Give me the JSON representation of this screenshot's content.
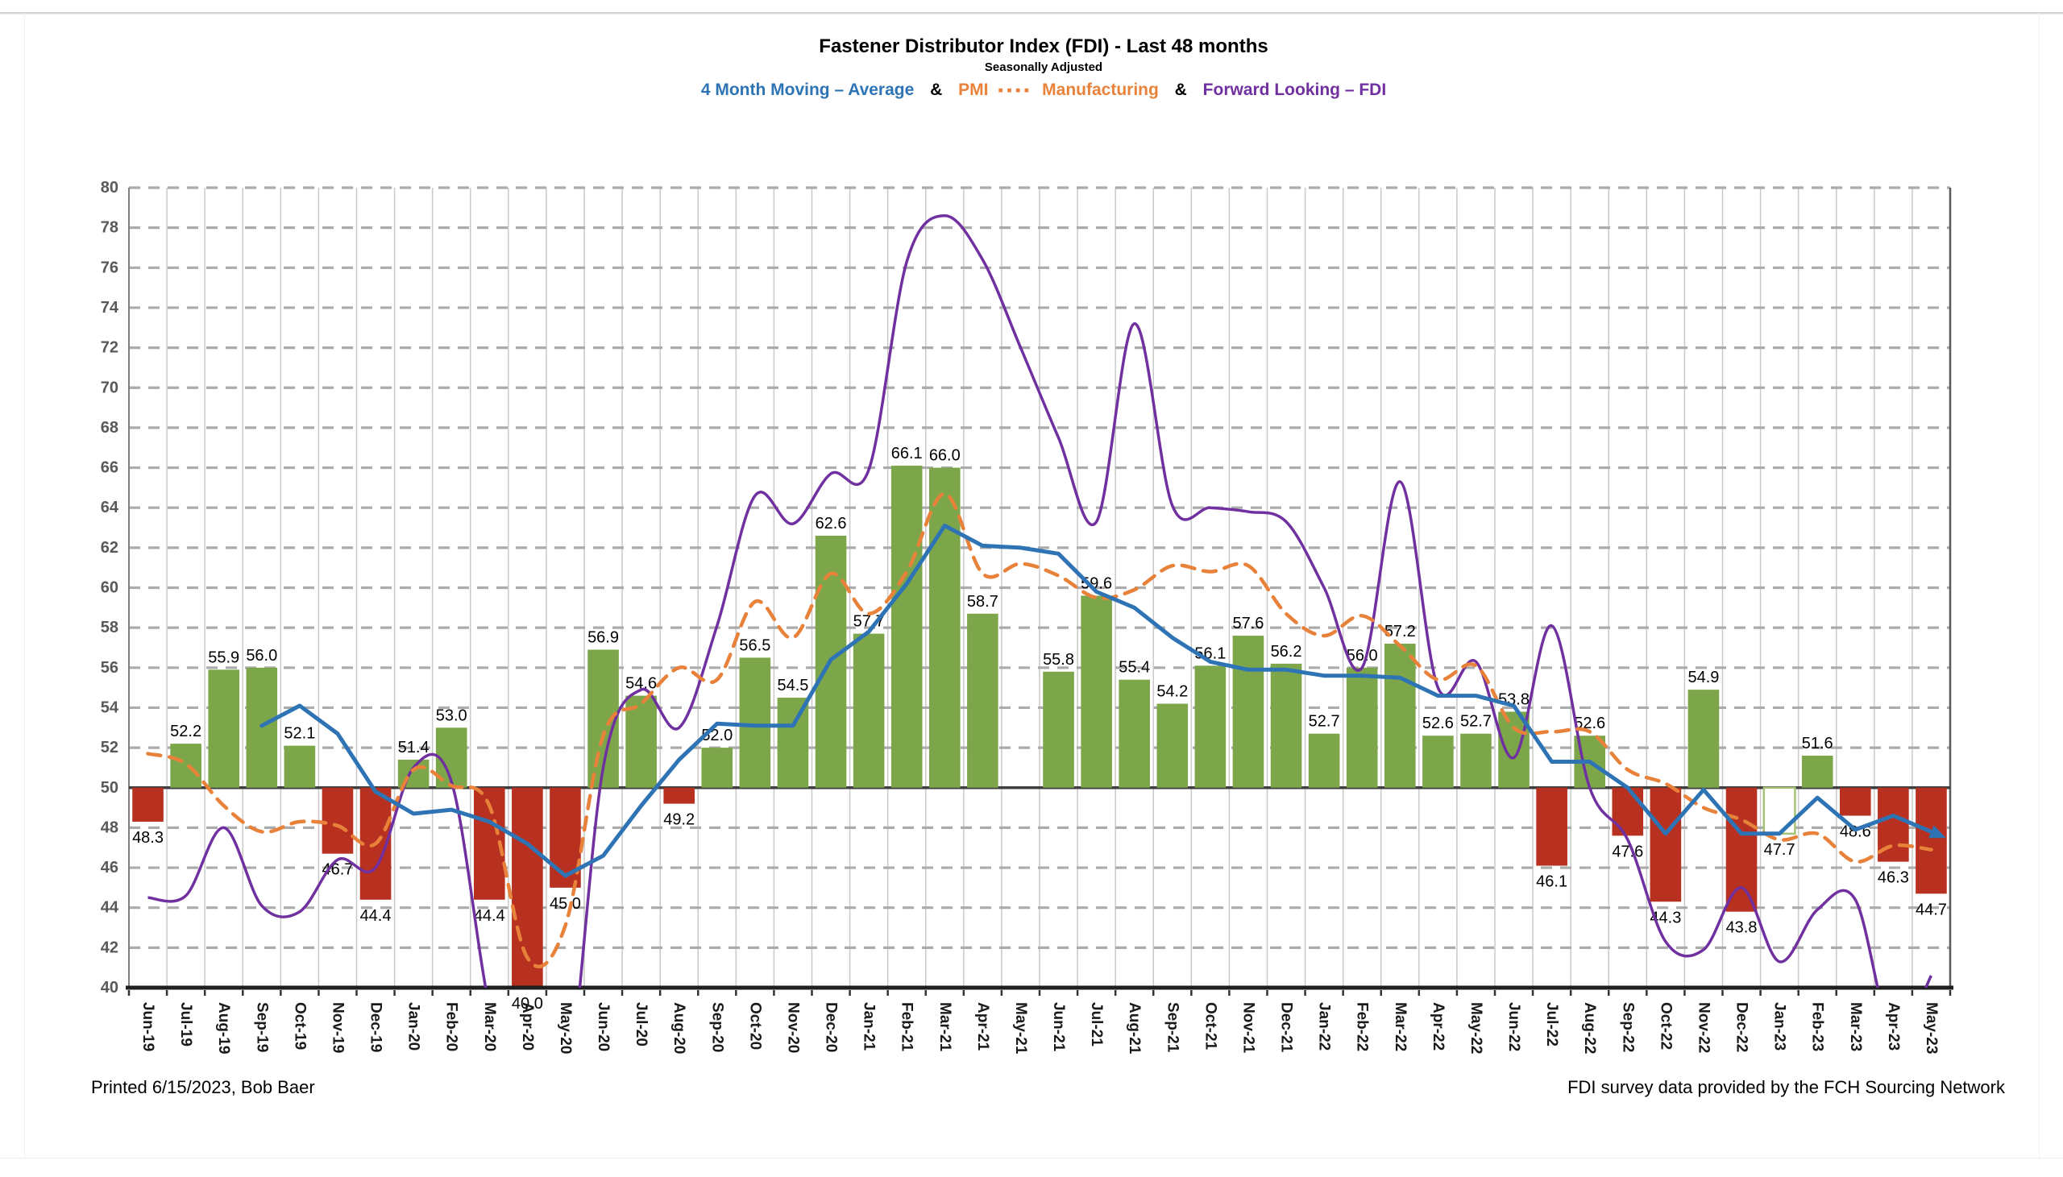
{
  "page": {
    "header": {
      "legend": {
        "ma4_label": "4 Month Moving – Average",
        "amp1": "&",
        "pmi_prefix": "PMI",
        "pmi_squares_icon": "▪▪▪▪",
        "pmi_suffix": "Manufacturing",
        "amp2": "&",
        "forward_label": "Forward Looking – FDI"
      }
    },
    "footer": {
      "left": "Printed 6/15/2023, Bob Baer",
      "right": "FDI survey data provided by the FCH Sourcing Network"
    }
  },
  "colors": {
    "bar_above": "#7DA64B",
    "bar_below": "#B8301F",
    "bar_outline": "#A6C178",
    "ma4_blue": "#2E74B5",
    "pmi_orange": "#E8823A",
    "forward_purple": "#7030A0",
    "gridline_v": "#c9c9c9",
    "gridline_h_dashed": "#ababab",
    "baseline_50": "#3f3f3f",
    "bottom_axis": "#1f1f1f",
    "y_label": "#595959",
    "x_label": "#1a1a1a"
  },
  "chart_data": {
    "type": "combo",
    "title": "Fastener Distributor Index (FDI) - Last 48 months",
    "subtitle": "Seasonally Adjusted",
    "xlabel": "",
    "ylabel": "",
    "ylim": [
      40,
      80
    ],
    "ytick_step": 2,
    "yticks": [
      80,
      78,
      76,
      74,
      72,
      70,
      68,
      66,
      64,
      62,
      60,
      58,
      56,
      54,
      52,
      50,
      48,
      46,
      44,
      42,
      40
    ],
    "baseline": 50,
    "grid": {
      "horizontal": "dashed",
      "vertical": "solid"
    },
    "legend_position": "top",
    "x_categories": [
      "Jun-19",
      "Jul-19",
      "Aug-19",
      "Sep-19",
      "Oct-19",
      "Nov-19",
      "Dec-19",
      "Jan-20",
      "Feb-20",
      "Mar-20",
      "Apr-20",
      "May-20",
      "Jun-20",
      "Jul-20",
      "Aug-20",
      "Sep-20",
      "Oct-20",
      "Nov-20",
      "Dec-20",
      "Jan-21",
      "Feb-21",
      "Mar-21",
      "Apr-21",
      "May-21",
      "Jun-21",
      "Jul-21",
      "Aug-21",
      "Sep-21",
      "Oct-21",
      "Nov-21",
      "Dec-21",
      "Jan-22",
      "Feb-22",
      "Mar-22",
      "Apr-22",
      "May-22",
      "Jun-22",
      "Jul-22",
      "Aug-22",
      "Sep-22",
      "Oct-22",
      "Nov-22",
      "Dec-22",
      "Jan-23",
      "Feb-23",
      "Mar-23",
      "Apr-23",
      "May-23"
    ],
    "series": [
      {
        "name": "FDI",
        "type": "bar",
        "baseline": 50,
        "values": [
          48.3,
          52.2,
          55.9,
          56.0,
          52.1,
          46.7,
          44.4,
          51.4,
          53.0,
          44.4,
          40.0,
          45.0,
          56.9,
          54.6,
          49.2,
          52.0,
          56.5,
          54.5,
          62.6,
          57.7,
          66.1,
          66.0,
          58.7,
          null,
          55.8,
          59.6,
          55.4,
          54.2,
          56.1,
          57.6,
          56.2,
          52.7,
          56.0,
          57.2,
          52.6,
          52.7,
          53.8,
          46.1,
          52.6,
          47.6,
          44.3,
          54.9,
          43.8,
          47.7,
          51.6,
          48.6,
          46.3,
          44.7
        ],
        "no_bar_months": [
          "May-21"
        ],
        "outline_bar_months": [
          "Jan-23"
        ],
        "labels_shown": true
      },
      {
        "name": "4 Month Moving Average",
        "type": "line",
        "smooth": false,
        "arrow_end": true,
        "values": [
          null,
          null,
          null,
          53.1,
          54.1,
          52.7,
          49.8,
          48.7,
          48.9,
          48.3,
          47.2,
          45.6,
          46.6,
          49.1,
          51.4,
          53.2,
          53.1,
          53.1,
          56.4,
          57.8,
          60.2,
          63.1,
          62.1,
          62.0,
          61.7,
          59.8,
          59.0,
          57.5,
          56.3,
          55.9,
          55.9,
          55.6,
          55.6,
          55.5,
          54.6,
          54.6,
          54.1,
          51.3,
          51.3,
          50.0,
          47.7,
          49.9,
          47.7,
          47.7,
          49.5,
          47.9,
          48.6,
          47.8
        ]
      },
      {
        "name": "PMI Manufacturing",
        "type": "line",
        "smooth": true,
        "dashed": true,
        "values": [
          51.7,
          51.2,
          49.1,
          47.8,
          48.3,
          48.1,
          47.2,
          50.9,
          50.1,
          49.1,
          41.5,
          43.1,
          52.6,
          54.2,
          56.0,
          55.4,
          59.3,
          57.5,
          60.7,
          58.7,
          60.8,
          64.7,
          60.7,
          61.2,
          60.6,
          59.5,
          59.9,
          61.1,
          60.8,
          61.1,
          58.7,
          57.6,
          58.6,
          57.1,
          55.4,
          56.1,
          53.0,
          52.8,
          52.8,
          50.9,
          50.2,
          49.0,
          48.4,
          47.4,
          47.7,
          46.3,
          47.1,
          46.9
        ]
      },
      {
        "name": "Forward Looking FDI",
        "type": "line",
        "smooth": true,
        "values": [
          44.5,
          44.6,
          48.0,
          44.1,
          43.8,
          46.4,
          46.0,
          51.0,
          50.3,
          39.0,
          32.0,
          34.0,
          51.0,
          54.9,
          53.0,
          58.1,
          64.6,
          63.2,
          65.7,
          65.9,
          76.3,
          78.6,
          76.4,
          72.0,
          67.5,
          63.3,
          73.2,
          64.1,
          64.0,
          63.8,
          63.3,
          60.0,
          56.0,
          65.3,
          55.0,
          56.3,
          51.5,
          58.1,
          50.0,
          47.4,
          42.3,
          41.9,
          45.0,
          41.3,
          43.9,
          44.4,
          37.5,
          40.6
        ]
      }
    ]
  }
}
